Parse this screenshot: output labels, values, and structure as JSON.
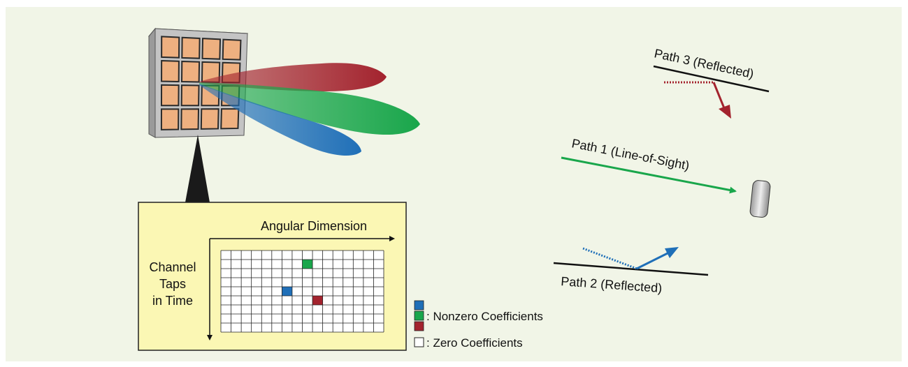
{
  "colors": {
    "background": "#f1f5e7",
    "grid_box": "#fbf7b4",
    "element": "#eeb080",
    "blue": "#1f6fb8",
    "green": "#19a64b",
    "red": "#a3232e",
    "plate": "#c4c4c4"
  },
  "grid": {
    "axis_x_label": "Angular Dimension",
    "axis_y_label": [
      "Channel",
      "Taps",
      "in Time"
    ],
    "cols": 16,
    "rows": 9,
    "nonzero": [
      {
        "color": "green",
        "row": 1,
        "col": 8
      },
      {
        "color": "blue",
        "row": 4,
        "col": 6
      },
      {
        "color": "red",
        "row": 5,
        "col": 9
      }
    ]
  },
  "legend": {
    "nonzero": ": Nonzero Coefficients",
    "zero": ": Zero Coefficients"
  },
  "paths": {
    "path1": "Path 1 (Line-of-Sight)",
    "path2": "Path 2 (Reflected)",
    "path3": "Path 3 (Reflected)"
  },
  "icons": [
    "antenna-array-icon",
    "receiver-device-icon"
  ]
}
